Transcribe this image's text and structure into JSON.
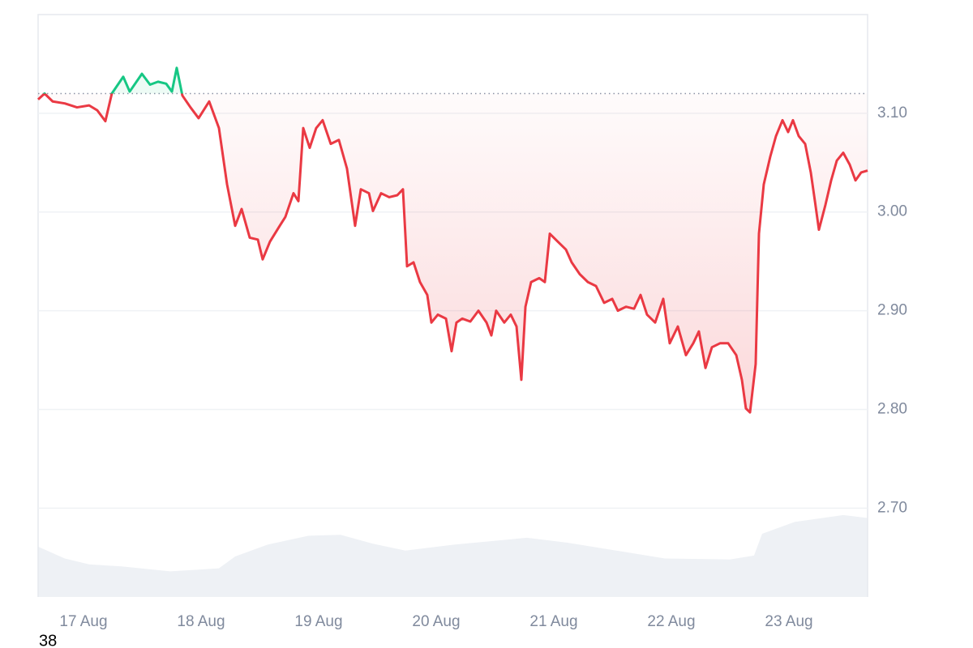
{
  "chart_data": {
    "type": "line",
    "x": [
      16.614,
      16.669,
      16.738,
      16.841,
      16.945,
      17.048,
      17.117,
      17.186,
      17.241,
      17.338,
      17.393,
      17.497,
      17.566,
      17.634,
      17.703,
      17.752,
      17.793,
      17.841,
      17.91,
      17.979,
      18.069,
      18.152,
      18.221,
      18.29,
      18.345,
      18.414,
      18.483,
      18.524,
      18.586,
      18.669,
      18.717,
      18.786,
      18.828,
      18.869,
      18.924,
      18.979,
      19.034,
      19.103,
      19.172,
      19.241,
      19.31,
      19.359,
      19.428,
      19.462,
      19.531,
      19.6,
      19.669,
      19.717,
      19.752,
      19.807,
      19.862,
      19.924,
      19.959,
      20.014,
      20.083,
      20.131,
      20.172,
      20.221,
      20.29,
      20.359,
      20.428,
      20.469,
      20.51,
      20.579,
      20.634,
      20.683,
      20.724,
      20.759,
      20.807,
      20.876,
      20.924,
      20.966,
      21.034,
      21.103,
      21.152,
      21.221,
      21.29,
      21.359,
      21.428,
      21.497,
      21.545,
      21.614,
      21.683,
      21.738,
      21.793,
      21.862,
      21.931,
      21.986,
      22.055,
      22.124,
      22.186,
      22.234,
      22.29,
      22.345,
      22.414,
      22.483,
      22.552,
      22.6,
      22.634,
      22.669,
      22.717,
      22.745,
      22.786,
      22.841,
      22.89,
      22.945,
      22.993,
      23.034,
      23.083,
      23.138,
      23.186,
      23.221,
      23.255,
      23.31,
      23.359,
      23.407,
      23.462,
      23.517,
      23.566,
      23.614,
      23.669
    ],
    "series": [
      {
        "color": "#ea3943",
        "color_above": "#16c784",
        "values": [
          3.114,
          3.12,
          3.112,
          3.11,
          3.106,
          3.108,
          3.103,
          3.092,
          3.12,
          3.137,
          3.122,
          3.14,
          3.129,
          3.132,
          3.13,
          3.122,
          3.146,
          3.118,
          3.106,
          3.095,
          3.112,
          3.085,
          3.028,
          2.986,
          3.003,
          2.974,
          2.972,
          2.952,
          2.97,
          2.986,
          2.995,
          3.019,
          3.011,
          3.085,
          3.065,
          3.085,
          3.093,
          3.069,
          3.073,
          3.044,
          2.986,
          3.023,
          3.019,
          3.001,
          3.019,
          3.015,
          3.017,
          3.023,
          2.945,
          2.949,
          2.929,
          2.916,
          2.888,
          2.896,
          2.892,
          2.859,
          2.888,
          2.892,
          2.889,
          2.9,
          2.888,
          2.875,
          2.9,
          2.888,
          2.896,
          2.884,
          2.83,
          2.904,
          2.929,
          2.933,
          2.929,
          2.978,
          2.97,
          2.962,
          2.949,
          2.937,
          2.929,
          2.925,
          2.908,
          2.912,
          2.9,
          2.904,
          2.902,
          2.916,
          2.896,
          2.888,
          2.912,
          2.867,
          2.884,
          2.855,
          2.867,
          2.879,
          2.842,
          2.863,
          2.867,
          2.867,
          2.855,
          2.83,
          2.801,
          2.797,
          2.846,
          2.978,
          3.028,
          3.056,
          3.077,
          3.093,
          3.081,
          3.093,
          3.077,
          3.069,
          3.04,
          3.011,
          2.982,
          3.007,
          3.032,
          3.052,
          3.06,
          3.048,
          3.032,
          3.04,
          3.042
        ]
      }
    ],
    "baseline": 3.12,
    "volume": {
      "color": "#eef1f5",
      "x": [
        16.614,
        16.841,
        17.048,
        17.324,
        17.738,
        18.152,
        18.29,
        18.566,
        18.91,
        19.186,
        19.462,
        19.738,
        20.152,
        20.772,
        21.117,
        21.531,
        21.945,
        22.497,
        22.703,
        22.772,
        23.048,
        23.462,
        23.669
      ],
      "values": [
        2.661,
        2.649,
        2.643,
        2.641,
        2.636,
        2.639,
        2.651,
        2.663,
        2.672,
        2.673,
        2.664,
        2.657,
        2.663,
        2.67,
        2.665,
        2.657,
        2.649,
        2.648,
        2.652,
        2.674,
        2.686,
        2.693,
        2.69
      ]
    },
    "xlim": [
      16.614,
      23.669
    ],
    "xticks": [
      {
        "value": 17,
        "label": "17 Aug"
      },
      {
        "value": 18,
        "label": "18 Aug"
      },
      {
        "value": 19,
        "label": "19 Aug"
      },
      {
        "value": 20,
        "label": "20 Aug"
      },
      {
        "value": 21,
        "label": "21 Aug"
      },
      {
        "value": 22,
        "label": "22 Aug"
      },
      {
        "value": 23,
        "label": "23 Aug"
      }
    ],
    "ylim": [
      2.61,
      3.2
    ],
    "yticks": [
      {
        "value": 2.7,
        "label": "2.70"
      },
      {
        "value": 2.8,
        "label": "2.80"
      },
      {
        "value": 2.9,
        "label": "2.90"
      },
      {
        "value": 3,
        "label": "3.00"
      },
      {
        "value": 3.1,
        "label": "3.10"
      }
    ],
    "grid": true,
    "footer": "38"
  }
}
